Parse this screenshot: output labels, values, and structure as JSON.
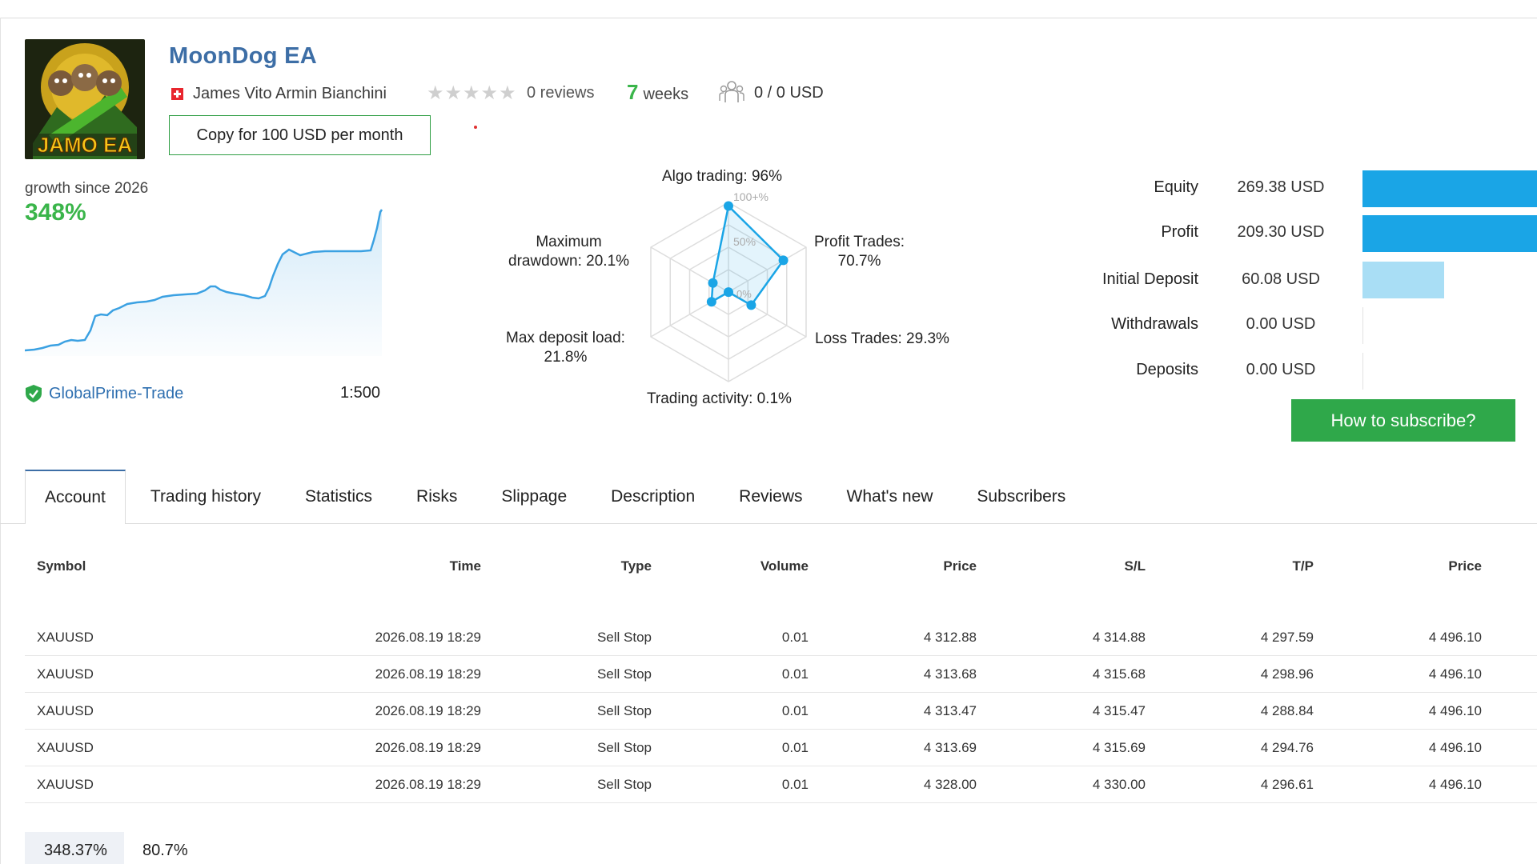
{
  "header": {
    "title": "MoonDog EA",
    "logo_text": "JAMO EA",
    "author": "James Vito Armin Bianchini",
    "reviews": "0 reviews",
    "weeks_num": "7",
    "weeks_label": "weeks",
    "subscribers": "0 / 0 USD",
    "copy_button": "Copy for 100 USD per month"
  },
  "growth": {
    "label": "growth since 2026",
    "value": "348%",
    "broker": "GlobalPrime-Trade",
    "leverage": "1:500",
    "line_color": "#3ba1e2"
  },
  "radar": {
    "algo": "Algo trading: 96%",
    "profit_1": "Profit Trades:",
    "profit_2": "70.7%",
    "loss": "Loss Trades: 29.3%",
    "activity": "Trading activity: 0.1%",
    "deposit_1": "Max deposit load:",
    "deposit_2": "21.8%",
    "drawdown_1": "Maximum",
    "drawdown_2": "drawdown: 20.1%",
    "scale_100": "100+%",
    "scale_50": "50%",
    "scale_0": "0%"
  },
  "chart_data": {
    "type": "radar",
    "axes": [
      "Algo trading",
      "Profit Trades",
      "Loss Trades",
      "Trading activity",
      "Max deposit load",
      "Maximum drawdown"
    ],
    "values": [
      96,
      70.7,
      29.3,
      0.1,
      21.8,
      20.1
    ],
    "range": [
      0,
      100
    ]
  },
  "stats": {
    "equity_label": "Equity",
    "equity_value": "269.38 USD",
    "profit_label": "Profit",
    "profit_value": "209.30 USD",
    "initial_label": "Initial Deposit",
    "initial_value": "60.08 USD",
    "withdrawals_label": "Withdrawals",
    "withdrawals_value": "0.00 USD",
    "deposits_label": "Deposits",
    "deposits_value": "0.00 USD",
    "subscribe_button": "How to subscribe?",
    "bar_color": "#1aa5e6",
    "bar_light_color": "#a9def5"
  },
  "tabs": [
    "Account",
    "Trading history",
    "Statistics",
    "Risks",
    "Slippage",
    "Description",
    "Reviews",
    "What's new",
    "Subscribers"
  ],
  "table": {
    "headers": [
      "Symbol",
      "Time",
      "Type",
      "Volume",
      "Price",
      "S/L",
      "T/P",
      "Price"
    ],
    "rows": [
      [
        "XAUUSD",
        "2026.08.19 18:29",
        "Sell Stop",
        "0.01",
        "4 312.88",
        "4 314.88",
        "4 297.59",
        "4 496.10"
      ],
      [
        "XAUUSD",
        "2026.08.19 18:29",
        "Sell Stop",
        "0.01",
        "4 313.68",
        "4 315.68",
        "4 298.96",
        "4 496.10"
      ],
      [
        "XAUUSD",
        "2026.08.19 18:29",
        "Sell Stop",
        "0.01",
        "4 313.47",
        "4 315.47",
        "4 288.84",
        "4 496.10"
      ],
      [
        "XAUUSD",
        "2026.08.19 18:29",
        "Sell Stop",
        "0.01",
        "4 313.69",
        "4 315.69",
        "4 294.76",
        "4 496.10"
      ],
      [
        "XAUUSD",
        "2026.08.19 18:29",
        "Sell Stop",
        "0.01",
        "4 328.00",
        "4 330.00",
        "4 296.61",
        "4 496.10"
      ]
    ]
  },
  "bottom": {
    "val1": "348.37%",
    "val2": "80.7%"
  }
}
